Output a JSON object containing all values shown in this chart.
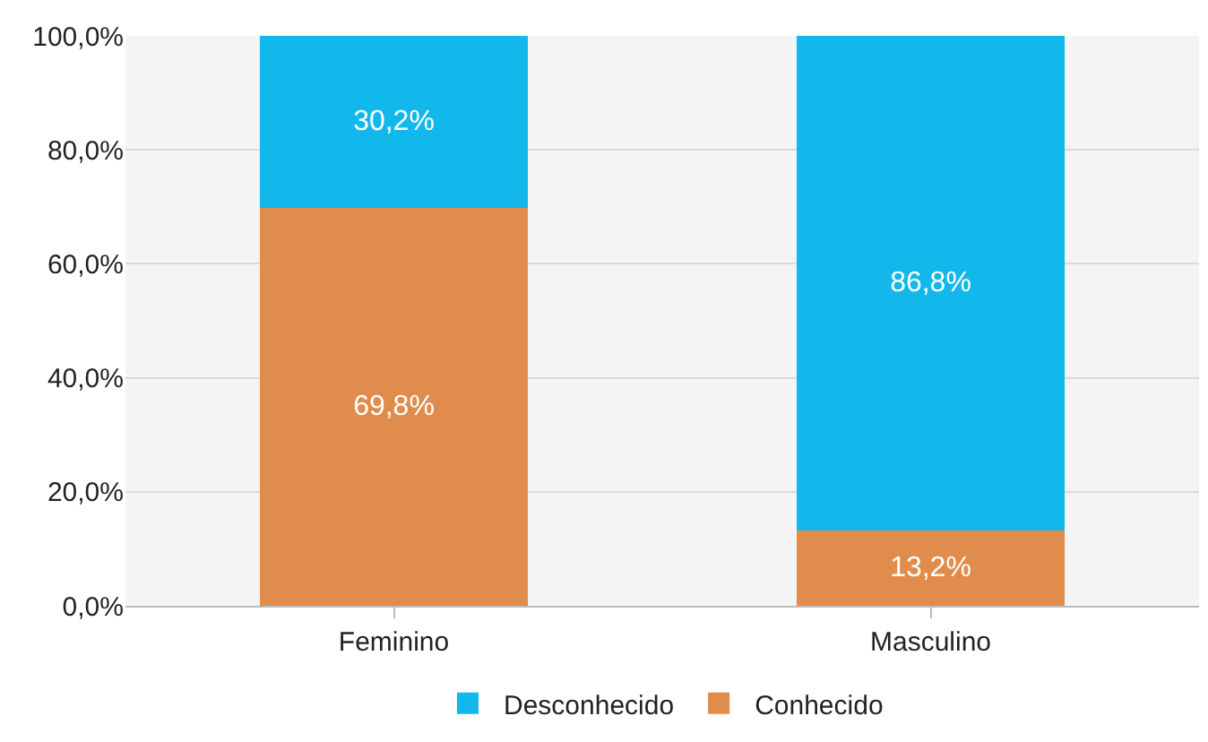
{
  "chart_data": {
    "type": "bar",
    "stacked": true,
    "categories": [
      "Feminino",
      "Masculino"
    ],
    "series": [
      {
        "name": "Conhecido",
        "color": "#e08c4c",
        "values": [
          69.8,
          13.2
        ],
        "value_labels": [
          "69,8%",
          "13,2%"
        ]
      },
      {
        "name": "Desconhecido",
        "color": "#12b8eb",
        "values": [
          30.2,
          86.8
        ],
        "value_labels": [
          "30,2%",
          "86,8%"
        ]
      }
    ],
    "ylim": [
      0,
      100
    ],
    "yticks": [
      {
        "value": 0,
        "label": "0,0%"
      },
      {
        "value": 20,
        "label": "20,0%"
      },
      {
        "value": 40,
        "label": "40,0%"
      },
      {
        "value": 60,
        "label": "60,0%"
      },
      {
        "value": 80,
        "label": "80,0%"
      },
      {
        "value": 100,
        "label": "100,0%"
      }
    ],
    "grid": "y",
    "legend": "bottom"
  }
}
